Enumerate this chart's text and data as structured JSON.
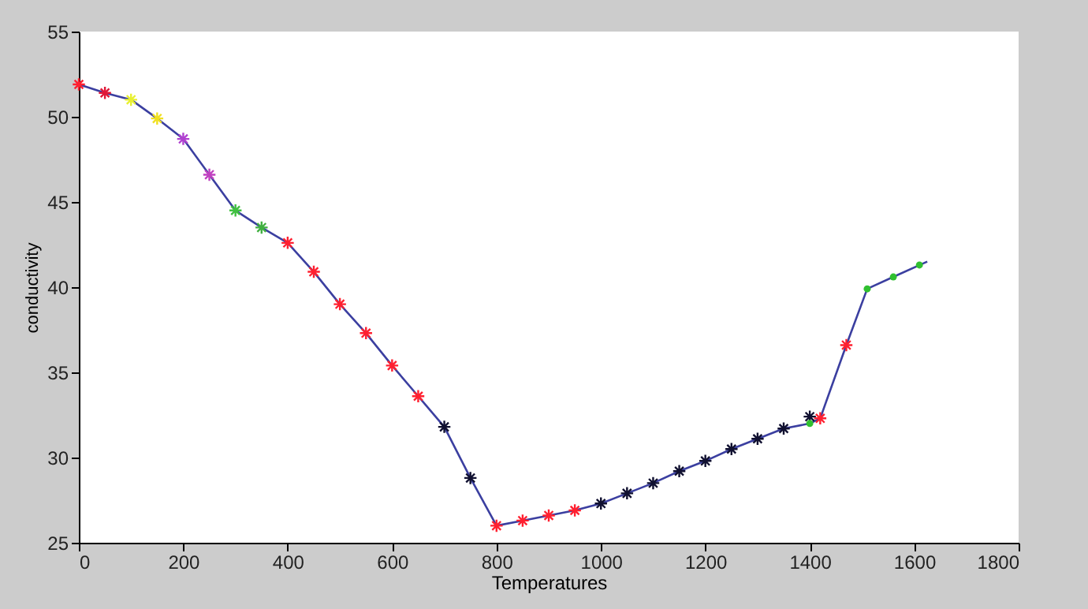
{
  "chart_data": {
    "type": "line",
    "xlabel": "Temperatures",
    "ylabel": "conductivity",
    "xlim": [
      0,
      1800
    ],
    "xticks": [
      0,
      200,
      400,
      600,
      800,
      1000,
      1200,
      1400,
      1600,
      1800
    ],
    "ylim": [
      25,
      55
    ],
    "yticks": [
      25,
      30,
      35,
      40,
      45,
      50,
      55
    ],
    "series": [
      {
        "color": "#3b3fa0",
        "marker": "none",
        "line_style": "solid",
        "x": [
          0,
          50,
          100,
          150,
          200,
          250,
          300,
          350,
          400,
          450,
          500,
          550,
          600,
          650,
          700,
          750,
          800,
          850,
          900,
          950,
          1000,
          1050,
          1100,
          1150,
          1200,
          1250,
          1300,
          1350,
          1400,
          1420,
          1470,
          1510,
          1560,
          1625
        ],
        "values": [
          51.9,
          51.4,
          51.0,
          49.9,
          48.7,
          46.6,
          44.5,
          43.5,
          42.6,
          40.9,
          39.0,
          37.3,
          35.4,
          33.6,
          31.8,
          28.8,
          26.0,
          26.3,
          26.6,
          26.9,
          27.3,
          27.9,
          28.5,
          29.2,
          29.8,
          30.5,
          31.1,
          31.7,
          32.0,
          32.3,
          36.6,
          39.9,
          40.6,
          41.5
        ]
      },
      {
        "type": "scatter",
        "marker": "cross",
        "x": [
          0,
          50,
          100,
          150,
          200,
          250,
          300,
          350,
          400,
          450,
          500,
          550,
          600,
          650,
          700,
          750,
          800,
          850,
          900,
          950,
          1000,
          1050,
          1100,
          1150,
          1200,
          1250,
          1300,
          1350,
          1400,
          1420,
          1470
        ],
        "values": [
          51.9,
          51.4,
          51.0,
          49.9,
          48.7,
          46.6,
          44.5,
          43.5,
          42.6,
          40.9,
          39.0,
          37.3,
          35.4,
          33.6,
          31.8,
          28.8,
          26.0,
          26.3,
          26.6,
          26.9,
          27.3,
          27.9,
          28.5,
          29.2,
          29.8,
          30.5,
          31.1,
          31.7,
          32.4,
          32.3,
          36.6
        ],
        "colors": [
          "#ff2030",
          "#e01838",
          "#e8f030",
          "#f0e020",
          "#b040d0",
          "#c040c0",
          "#40c040",
          "#40b040",
          "#ff2030",
          "#ff2030",
          "#ff2030",
          "#ff2030",
          "#ff2030",
          "#ff2030",
          "#101030",
          "#101030",
          "#ff2030",
          "#ff2030",
          "#ff2030",
          "#ff2030",
          "#101030",
          "#101030",
          "#101030",
          "#101030",
          "#101030",
          "#101030",
          "#101030",
          "#101030",
          "#101030",
          "#ff2030",
          "#ff2030"
        ]
      },
      {
        "type": "scatter",
        "marker": "circle",
        "color": "#30c030",
        "x": [
          1400,
          1510,
          1560,
          1610
        ],
        "values": [
          32.0,
          39.9,
          40.6,
          41.3
        ]
      }
    ]
  }
}
